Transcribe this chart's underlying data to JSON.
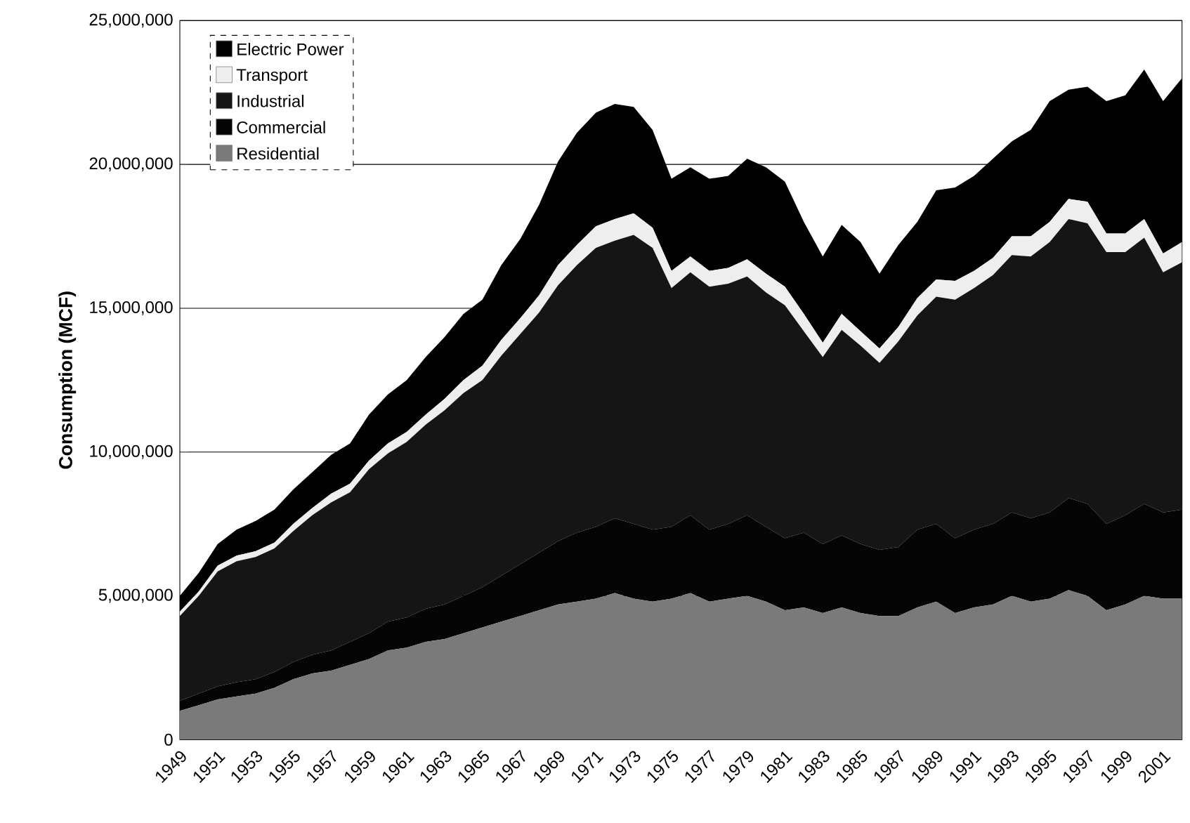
{
  "chart_data": {
    "type": "area",
    "stacked": true,
    "ylabel": "Consumption (MCF)",
    "categories": [
      "1949",
      null,
      "1951",
      null,
      "1953",
      null,
      "1955",
      null,
      "1957",
      null,
      "1959",
      null,
      "1961",
      null,
      "1963",
      null,
      "1965",
      null,
      "1967",
      null,
      "1969",
      null,
      "1971",
      null,
      "1973",
      null,
      "1975",
      null,
      "1977",
      null,
      "1979",
      null,
      "1981",
      null,
      "1983",
      null,
      "1985",
      null,
      "1987",
      null,
      "1989",
      null,
      "1991",
      null,
      "1993",
      null,
      "1995",
      null,
      "1997",
      null,
      "1999",
      null,
      "2001",
      null
    ],
    "series": [
      {
        "name": "Residential",
        "color": "#7a7a7a",
        "values": [
          1000000,
          1200000,
          1400000,
          1500000,
          1600000,
          1800000,
          2100000,
          2300000,
          2400000,
          2600000,
          2800000,
          3100000,
          3200000,
          3400000,
          3500000,
          3700000,
          3900000,
          4100000,
          4300000,
          4500000,
          4700000,
          4800000,
          4900000,
          5100000,
          4900000,
          4800000,
          4900000,
          5100000,
          4800000,
          4900000,
          5000000,
          4800000,
          4500000,
          4600000,
          4400000,
          4600000,
          4400000,
          4300000,
          4300000,
          4600000,
          4800000,
          4400000,
          4600000,
          4700000,
          5000000,
          4800000,
          4900000,
          5200000,
          5000000,
          4500000,
          4700000,
          5000000,
          4900000,
          4900000
        ]
      },
      {
        "name": "Commercial",
        "color": "#050505",
        "values": [
          350000,
          400000,
          450000,
          500000,
          500000,
          550000,
          600000,
          650000,
          700000,
          800000,
          900000,
          1000000,
          1050000,
          1150000,
          1200000,
          1300000,
          1400000,
          1600000,
          1800000,
          2000000,
          2200000,
          2400000,
          2500000,
          2600000,
          2600000,
          2500000,
          2500000,
          2700000,
          2500000,
          2600000,
          2800000,
          2600000,
          2500000,
          2600000,
          2400000,
          2500000,
          2400000,
          2300000,
          2400000,
          2700000,
          2700000,
          2600000,
          2700000,
          2800000,
          2900000,
          2900000,
          3000000,
          3200000,
          3200000,
          3000000,
          3100000,
          3200000,
          3000000,
          3100000
        ]
      },
      {
        "name": "Industrial",
        "color": "#151515",
        "values": [
          2950000,
          3400000,
          4000000,
          4200000,
          4250000,
          4300000,
          4550000,
          4850000,
          5150000,
          5200000,
          5700000,
          5850000,
          6100000,
          6400000,
          6750000,
          7050000,
          7200000,
          7650000,
          8000000,
          8350000,
          8900000,
          9300000,
          9700000,
          9650000,
          10050000,
          9800000,
          8300000,
          8450000,
          8450000,
          8350000,
          8300000,
          8150000,
          8100000,
          7000000,
          6500000,
          7150000,
          6900000,
          6500000,
          7150000,
          7450000,
          7900000,
          8300000,
          8400000,
          8650000,
          8950000,
          9100000,
          9400000,
          9700000,
          9750000,
          9450000,
          9150000,
          9250000,
          8350000,
          8600000
        ]
      },
      {
        "name": "Transport",
        "color": "#eeeeee",
        "values": [
          150000,
          150000,
          200000,
          200000,
          200000,
          200000,
          250000,
          250000,
          300000,
          300000,
          300000,
          350000,
          350000,
          350000,
          400000,
          450000,
          500000,
          550000,
          550000,
          600000,
          700000,
          700000,
          750000,
          750000,
          750000,
          700000,
          600000,
          550000,
          550000,
          550000,
          600000,
          650000,
          650000,
          600000,
          500000,
          550000,
          500000,
          500000,
          500000,
          600000,
          600000,
          650000,
          600000,
          600000,
          650000,
          700000,
          700000,
          700000,
          750000,
          650000,
          650000,
          650000,
          650000,
          700000
        ]
      },
      {
        "name": "Electric Power",
        "color": "#000000",
        "values": [
          550000,
          650000,
          750000,
          900000,
          1050000,
          1150000,
          1200000,
          1250000,
          1350000,
          1400000,
          1600000,
          1700000,
          1800000,
          2000000,
          2150000,
          2300000,
          2300000,
          2600000,
          2750000,
          3150000,
          3600000,
          3900000,
          3950000,
          4000000,
          3700000,
          3400000,
          3200000,
          3100000,
          3200000,
          3200000,
          3500000,
          3700000,
          3650000,
          3200000,
          3000000,
          3100000,
          3100000,
          2600000,
          2850000,
          2650000,
          3100000,
          3250000,
          3300000,
          3450000,
          3300000,
          3700000,
          4200000,
          3800000,
          4000000,
          4600000,
          4800000,
          5200000,
          5300000,
          5700000
        ]
      }
    ],
    "ylim": [
      0,
      25000000
    ],
    "yticks": [
      {
        "value": 0,
        "label": "0"
      },
      {
        "value": 5000000,
        "label": "5,000,000"
      },
      {
        "value": 10000000,
        "label": "10,000,000"
      },
      {
        "value": 15000000,
        "label": "15,000,000"
      },
      {
        "value": 20000000,
        "label": "20,000,000"
      },
      {
        "value": 25000000,
        "label": "25,000,000"
      }
    ],
    "grid": "y",
    "legend": "top left"
  }
}
